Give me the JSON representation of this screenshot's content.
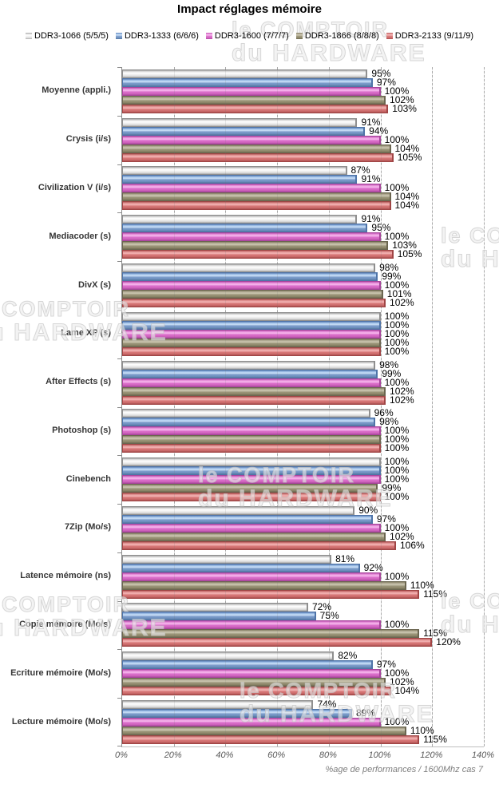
{
  "title": "Impact réglages mémoire",
  "watermark": {
    "line1": "le COMPTOIR",
    "line2": "du HARDWARE"
  },
  "chart_data": {
    "type": "bar",
    "orientation": "horizontal",
    "title": "Impact réglages mémoire",
    "xlabel": "%age de performances / 1600Mhz cas 7",
    "value_suffix": "%",
    "xlim": [
      0,
      140
    ],
    "xtick_step": 20,
    "xticks": [
      "0%",
      "20%",
      "40%",
      "60%",
      "80%",
      "100%",
      "120%",
      "140%"
    ],
    "grid": "vertical-dashed",
    "legend_position": "top",
    "categories": [
      "Moyenne (appli.)",
      "Crysis (i/s)",
      "Civilization V (i/s)",
      "Mediacoder (s)",
      "DivX (s)",
      "Lame XP (s)",
      "After Effects (s)",
      "Photoshop (s)",
      "Cinebench",
      "7Zip (Mo/s)",
      "Latence mémoire (ns)",
      "Copie mémoire (Mo/s)",
      "Ecriture mémoire (Mo/s)",
      "Lecture mémoire (Mo/s)"
    ],
    "series": [
      {
        "name": "DDR3-1066 (5/5/5)",
        "color": "#efefef",
        "values": [
          95,
          91,
          87,
          91,
          98,
          100,
          98,
          96,
          100,
          90,
          81,
          72,
          82,
          74
        ]
      },
      {
        "name": "DDR3-1333 (6/6/6)",
        "color": "#7d9dcb",
        "values": [
          97,
          94,
          91,
          95,
          99,
          100,
          99,
          98,
          100,
          97,
          92,
          75,
          97,
          89
        ]
      },
      {
        "name": "DDR3-1600 (7/7/7)",
        "color": "#db6fcb",
        "values": [
          100,
          100,
          100,
          100,
          100,
          100,
          100,
          100,
          100,
          100,
          100,
          100,
          100,
          100
        ]
      },
      {
        "name": "DDR3-1866 (8/8/8)",
        "color": "#9b9579",
        "values": [
          102,
          104,
          104,
          103,
          101,
          100,
          102,
          100,
          99,
          102,
          110,
          115,
          102,
          110
        ]
      },
      {
        "name": "DDR3-2133 (9/11/9)",
        "color": "#d87878",
        "values": [
          103,
          105,
          104,
          105,
          102,
          100,
          102,
          100,
          100,
          106,
          115,
          120,
          104,
          115
        ]
      }
    ]
  }
}
